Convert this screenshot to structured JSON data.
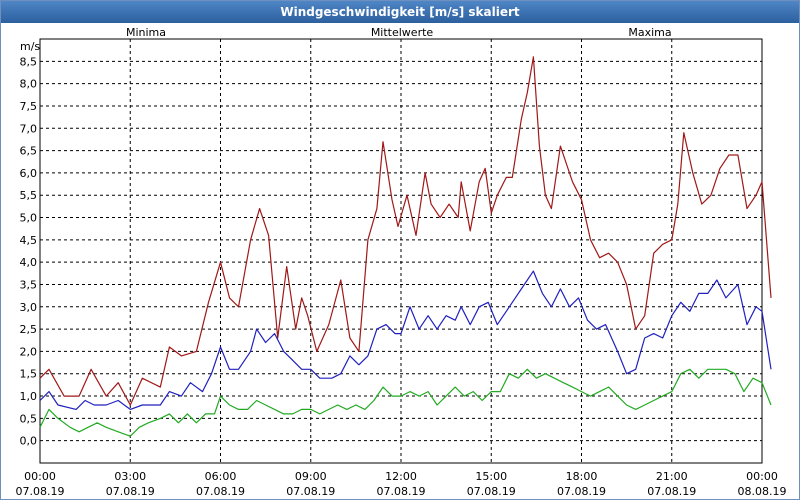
{
  "window": {
    "title": "Windgeschwindigkeit [m/s] skaliert"
  },
  "chart_data": {
    "type": "line",
    "title": "Windgeschwindigkeit [m/s] skaliert",
    "ylabel": "m/s",
    "ylim": [
      -0.5,
      9.0
    ],
    "xlim": [
      0,
      24
    ],
    "grid": true,
    "legend": [
      {
        "name": "Minima",
        "color": "#22aa22"
      },
      {
        "name": "Mittelwerte",
        "color": "#2020c0"
      },
      {
        "name": "Maxima",
        "color": "#a01818"
      }
    ],
    "yticks": [
      "0,0",
      "0,5",
      "1,0",
      "1,5",
      "2,0",
      "2,5",
      "3,0",
      "3,5",
      "4,0",
      "4,5",
      "5,0",
      "5,5",
      "6,0",
      "6,5",
      "7,0",
      "7,5",
      "8,0",
      "8,5"
    ],
    "xticks": [
      {
        "time": "00:00",
        "date": "07.08.19"
      },
      {
        "time": "03:00",
        "date": "07.08.19"
      },
      {
        "time": "06:00",
        "date": "07.08.19"
      },
      {
        "time": "09:00",
        "date": "07.08.19"
      },
      {
        "time": "12:00",
        "date": "07.08.19"
      },
      {
        "time": "15:00",
        "date": "07.08.19"
      },
      {
        "time": "18:00",
        "date": "07.08.19"
      },
      {
        "time": "21:00",
        "date": "07.08.19"
      },
      {
        "time": "00:00",
        "date": "08.08.19"
      }
    ],
    "series": [
      {
        "name": "Maxima",
        "color": "#a01818",
        "points": [
          [
            0,
            1.4
          ],
          [
            0.3,
            1.6
          ],
          [
            0.8,
            1.0
          ],
          [
            1.3,
            1.0
          ],
          [
            1.7,
            1.6
          ],
          [
            2.2,
            1.0
          ],
          [
            2.6,
            1.3
          ],
          [
            3.0,
            0.8
          ],
          [
            3.4,
            1.4
          ],
          [
            4.0,
            1.2
          ],
          [
            4.3,
            2.1
          ],
          [
            4.7,
            1.9
          ],
          [
            5.2,
            2.0
          ],
          [
            5.6,
            3.1
          ],
          [
            6.0,
            4.0
          ],
          [
            6.3,
            3.2
          ],
          [
            6.6,
            3.0
          ],
          [
            7.0,
            4.5
          ],
          [
            7.3,
            5.2
          ],
          [
            7.6,
            4.6
          ],
          [
            7.9,
            2.3
          ],
          [
            8.2,
            3.9
          ],
          [
            8.5,
            2.5
          ],
          [
            8.7,
            3.2
          ],
          [
            8.9,
            2.8
          ],
          [
            9.2,
            2.0
          ],
          [
            9.6,
            2.6
          ],
          [
            10.0,
            3.6
          ],
          [
            10.3,
            2.3
          ],
          [
            10.6,
            2.0
          ],
          [
            10.9,
            4.5
          ],
          [
            11.2,
            5.2
          ],
          [
            11.4,
            6.7
          ],
          [
            11.7,
            5.4
          ],
          [
            11.9,
            4.8
          ],
          [
            12.2,
            5.5
          ],
          [
            12.5,
            4.6
          ],
          [
            12.8,
            6.0
          ],
          [
            13.0,
            5.3
          ],
          [
            13.3,
            5.0
          ],
          [
            13.6,
            5.3
          ],
          [
            13.9,
            5.0
          ],
          [
            14.0,
            5.8
          ],
          [
            14.3,
            4.7
          ],
          [
            14.6,
            5.8
          ],
          [
            14.8,
            6.1
          ],
          [
            15.0,
            5.1
          ],
          [
            15.2,
            5.5
          ],
          [
            15.5,
            5.9
          ],
          [
            15.7,
            5.9
          ],
          [
            16.0,
            7.2
          ],
          [
            16.2,
            7.8
          ],
          [
            16.4,
            8.6
          ],
          [
            16.6,
            6.6
          ],
          [
            16.8,
            5.5
          ],
          [
            17.0,
            5.2
          ],
          [
            17.3,
            6.6
          ],
          [
            17.7,
            5.8
          ],
          [
            18.0,
            5.4
          ],
          [
            18.3,
            4.5
          ],
          [
            18.6,
            4.1
          ],
          [
            18.9,
            4.2
          ],
          [
            19.2,
            4.0
          ],
          [
            19.5,
            3.5
          ],
          [
            19.8,
            2.5
          ],
          [
            20.1,
            2.8
          ],
          [
            20.4,
            4.2
          ],
          [
            20.7,
            4.4
          ],
          [
            21.0,
            4.5
          ],
          [
            21.2,
            5.3
          ],
          [
            21.4,
            6.9
          ],
          [
            21.7,
            6.0
          ],
          [
            22.0,
            5.3
          ],
          [
            22.3,
            5.5
          ],
          [
            22.6,
            6.1
          ],
          [
            22.9,
            6.4
          ],
          [
            23.2,
            6.4
          ],
          [
            23.5,
            5.2
          ],
          [
            23.8,
            5.5
          ],
          [
            24.0,
            5.8
          ],
          [
            24.3,
            3.2
          ]
        ]
      },
      {
        "name": "Mittelwerte",
        "color": "#2020c0",
        "points": [
          [
            0,
            0.9
          ],
          [
            0.3,
            1.1
          ],
          [
            0.6,
            0.8
          ],
          [
            1.2,
            0.7
          ],
          [
            1.5,
            0.9
          ],
          [
            1.8,
            0.8
          ],
          [
            2.2,
            0.8
          ],
          [
            2.6,
            0.9
          ],
          [
            3.0,
            0.7
          ],
          [
            3.4,
            0.8
          ],
          [
            4.0,
            0.8
          ],
          [
            4.3,
            1.1
          ],
          [
            4.7,
            1.0
          ],
          [
            5.0,
            1.3
          ],
          [
            5.4,
            1.1
          ],
          [
            5.7,
            1.5
          ],
          [
            6.0,
            2.1
          ],
          [
            6.3,
            1.6
          ],
          [
            6.6,
            1.6
          ],
          [
            7.0,
            2.0
          ],
          [
            7.2,
            2.5
          ],
          [
            7.5,
            2.2
          ],
          [
            7.8,
            2.4
          ],
          [
            8.1,
            2.0
          ],
          [
            8.4,
            1.8
          ],
          [
            8.7,
            1.6
          ],
          [
            9.0,
            1.6
          ],
          [
            9.3,
            1.4
          ],
          [
            9.7,
            1.4
          ],
          [
            10.0,
            1.5
          ],
          [
            10.3,
            1.9
          ],
          [
            10.6,
            1.7
          ],
          [
            10.9,
            1.9
          ],
          [
            11.2,
            2.5
          ],
          [
            11.5,
            2.6
          ],
          [
            11.8,
            2.4
          ],
          [
            12.0,
            2.4
          ],
          [
            12.3,
            3.0
          ],
          [
            12.6,
            2.5
          ],
          [
            12.9,
            2.8
          ],
          [
            13.2,
            2.5
          ],
          [
            13.5,
            2.8
          ],
          [
            13.8,
            2.7
          ],
          [
            14.0,
            3.0
          ],
          [
            14.3,
            2.6
          ],
          [
            14.6,
            3.0
          ],
          [
            14.9,
            3.1
          ],
          [
            15.2,
            2.6
          ],
          [
            15.5,
            2.9
          ],
          [
            15.8,
            3.2
          ],
          [
            16.1,
            3.5
          ],
          [
            16.4,
            3.8
          ],
          [
            16.7,
            3.3
          ],
          [
            17.0,
            3.0
          ],
          [
            17.3,
            3.4
          ],
          [
            17.6,
            3.0
          ],
          [
            17.9,
            3.2
          ],
          [
            18.2,
            2.7
          ],
          [
            18.5,
            2.5
          ],
          [
            18.8,
            2.6
          ],
          [
            19.2,
            2.0
          ],
          [
            19.5,
            1.5
          ],
          [
            19.8,
            1.6
          ],
          [
            20.1,
            2.3
          ],
          [
            20.4,
            2.4
          ],
          [
            20.7,
            2.3
          ],
          [
            21.0,
            2.8
          ],
          [
            21.3,
            3.1
          ],
          [
            21.6,
            2.9
          ],
          [
            21.9,
            3.3
          ],
          [
            22.2,
            3.3
          ],
          [
            22.5,
            3.6
          ],
          [
            22.8,
            3.2
          ],
          [
            23.2,
            3.5
          ],
          [
            23.5,
            2.6
          ],
          [
            23.8,
            3.0
          ],
          [
            24.0,
            2.9
          ],
          [
            24.3,
            1.6
          ]
        ]
      },
      {
        "name": "Minima",
        "color": "#22aa22",
        "points": [
          [
            0,
            0.3
          ],
          [
            0.3,
            0.7
          ],
          [
            0.6,
            0.5
          ],
          [
            1.0,
            0.3
          ],
          [
            1.3,
            0.2
          ],
          [
            1.6,
            0.3
          ],
          [
            1.9,
            0.4
          ],
          [
            2.2,
            0.3
          ],
          [
            2.6,
            0.2
          ],
          [
            3.0,
            0.1
          ],
          [
            3.3,
            0.3
          ],
          [
            3.6,
            0.4
          ],
          [
            4.0,
            0.5
          ],
          [
            4.3,
            0.6
          ],
          [
            4.6,
            0.4
          ],
          [
            4.9,
            0.6
          ],
          [
            5.2,
            0.4
          ],
          [
            5.5,
            0.6
          ],
          [
            5.8,
            0.6
          ],
          [
            6.0,
            1.0
          ],
          [
            6.3,
            0.8
          ],
          [
            6.6,
            0.7
          ],
          [
            6.9,
            0.7
          ],
          [
            7.2,
            0.9
          ],
          [
            7.5,
            0.8
          ],
          [
            7.8,
            0.7
          ],
          [
            8.1,
            0.6
          ],
          [
            8.4,
            0.6
          ],
          [
            8.7,
            0.7
          ],
          [
            9.0,
            0.7
          ],
          [
            9.3,
            0.6
          ],
          [
            9.6,
            0.7
          ],
          [
            9.9,
            0.8
          ],
          [
            10.2,
            0.7
          ],
          [
            10.5,
            0.8
          ],
          [
            10.8,
            0.7
          ],
          [
            11.1,
            0.9
          ],
          [
            11.4,
            1.2
          ],
          [
            11.7,
            1.0
          ],
          [
            12.0,
            1.0
          ],
          [
            12.3,
            1.1
          ],
          [
            12.6,
            1.0
          ],
          [
            12.9,
            1.1
          ],
          [
            13.2,
            0.8
          ],
          [
            13.5,
            1.0
          ],
          [
            13.8,
            1.2
          ],
          [
            14.1,
            1.0
          ],
          [
            14.4,
            1.1
          ],
          [
            14.7,
            0.9
          ],
          [
            15.0,
            1.1
          ],
          [
            15.3,
            1.1
          ],
          [
            15.6,
            1.5
          ],
          [
            15.9,
            1.4
          ],
          [
            16.2,
            1.6
          ],
          [
            16.5,
            1.4
          ],
          [
            16.8,
            1.5
          ],
          [
            17.1,
            1.4
          ],
          [
            17.4,
            1.3
          ],
          [
            17.7,
            1.2
          ],
          [
            18.0,
            1.1
          ],
          [
            18.3,
            1.0
          ],
          [
            18.6,
            1.1
          ],
          [
            18.9,
            1.2
          ],
          [
            19.2,
            1.0
          ],
          [
            19.5,
            0.8
          ],
          [
            19.8,
            0.7
          ],
          [
            20.1,
            0.8
          ],
          [
            20.4,
            0.9
          ],
          [
            20.7,
            1.0
          ],
          [
            21.0,
            1.1
          ],
          [
            21.3,
            1.5
          ],
          [
            21.6,
            1.6
          ],
          [
            21.9,
            1.4
          ],
          [
            22.2,
            1.6
          ],
          [
            22.5,
            1.6
          ],
          [
            22.8,
            1.6
          ],
          [
            23.1,
            1.5
          ],
          [
            23.4,
            1.1
          ],
          [
            23.7,
            1.4
          ],
          [
            24.0,
            1.3
          ],
          [
            24.3,
            0.8
          ]
        ]
      }
    ]
  }
}
